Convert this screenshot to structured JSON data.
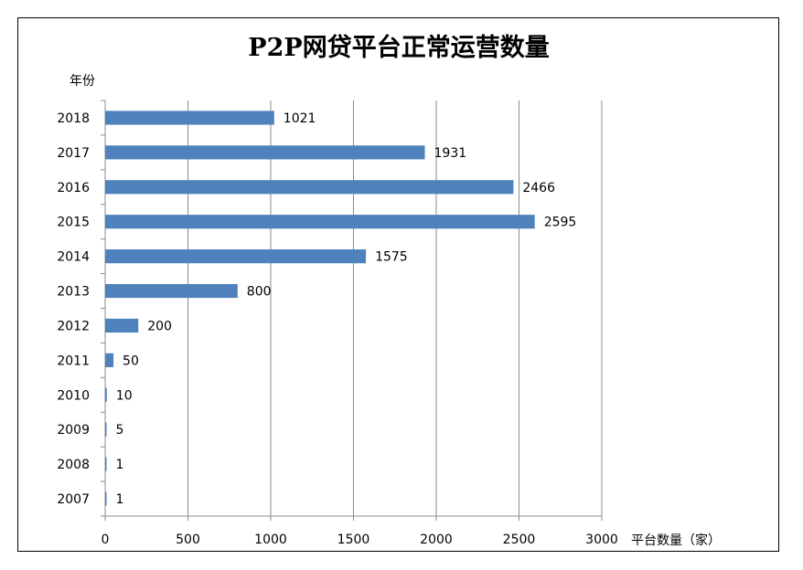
{
  "chart_data": {
    "type": "bar",
    "orientation": "horizontal",
    "title": "P2P网贷平台正常运营数量",
    "xlabel": "平台数量（家）",
    "ylabel": "年份",
    "categories": [
      "2007",
      "2008",
      "2009",
      "2010",
      "2011",
      "2012",
      "2013",
      "2014",
      "2015",
      "2016",
      "2017",
      "2018"
    ],
    "values": [
      1,
      1,
      5,
      10,
      50,
      200,
      800,
      1575,
      2595,
      2466,
      1931,
      1021
    ],
    "value_labels": [
      "1",
      "1",
      "5",
      "10",
      "50",
      "200",
      "800",
      "1575",
      "2595",
      "2466",
      "1931",
      "1021"
    ],
    "xlim": [
      0,
      3000
    ],
    "xticks": [
      0,
      500,
      1000,
      1500,
      2000,
      2500,
      3000
    ],
    "xtick_labels": [
      "0",
      "500",
      "1000",
      "1500",
      "2000",
      "2500",
      "3000"
    ],
    "grid": "vertical",
    "legend": "none",
    "bar_color": "#4f81bd"
  }
}
